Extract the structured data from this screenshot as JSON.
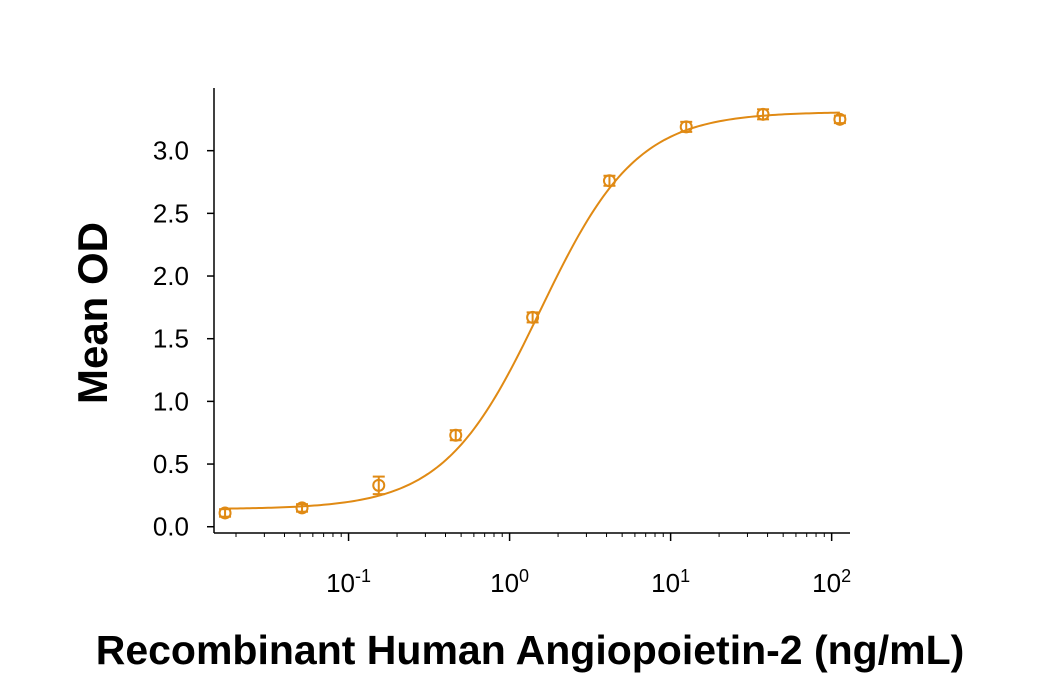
{
  "chart_data": {
    "type": "scatter",
    "xlabel": "Recombinant Human Angiopoietin-2 (ng/mL)",
    "ylabel": "Mean OD",
    "xscale": "log",
    "xlim": [
      0.0146,
      130
    ],
    "ylim": [
      -0.05,
      3.5
    ],
    "x_ticks": [
      {
        "value": 0.1,
        "base": "10",
        "exp": "-1"
      },
      {
        "value": 1,
        "base": "10",
        "exp": "0"
      },
      {
        "value": 10,
        "base": "10",
        "exp": "1"
      },
      {
        "value": 100,
        "base": "10",
        "exp": "2"
      }
    ],
    "y_ticks": [
      {
        "value": 0.0,
        "label": "0.0"
      },
      {
        "value": 0.5,
        "label": "0.5"
      },
      {
        "value": 1.0,
        "label": "1.0"
      },
      {
        "value": 1.5,
        "label": "1.5"
      },
      {
        "value": 2.0,
        "label": "2.0"
      },
      {
        "value": 2.5,
        "label": "2.5"
      },
      {
        "value": 3.0,
        "label": "3.0"
      }
    ],
    "color": "#E08A14",
    "series": [
      {
        "points": [
          {
            "x": 0.0171,
            "y": 0.11,
            "err": 0.03
          },
          {
            "x": 0.0514,
            "y": 0.15,
            "err": 0.03
          },
          {
            "x": 0.154,
            "y": 0.33,
            "err": 0.07
          },
          {
            "x": 0.463,
            "y": 0.73,
            "err": 0.04
          },
          {
            "x": 1.39,
            "y": 1.67,
            "err": 0.04
          },
          {
            "x": 4.17,
            "y": 2.76,
            "err": 0.04
          },
          {
            "x": 12.5,
            "y": 3.19,
            "err": 0.04
          },
          {
            "x": 37.5,
            "y": 3.29,
            "err": 0.04
          },
          {
            "x": 112.5,
            "y": 3.25,
            "err": 0.03
          }
        ]
      }
    ],
    "fit_curve": {
      "model": "4PL",
      "bottom": 0.14,
      "top": 3.31,
      "ec50": 1.55,
      "hill": 1.45
    },
    "grid": false,
    "legend": "none"
  }
}
